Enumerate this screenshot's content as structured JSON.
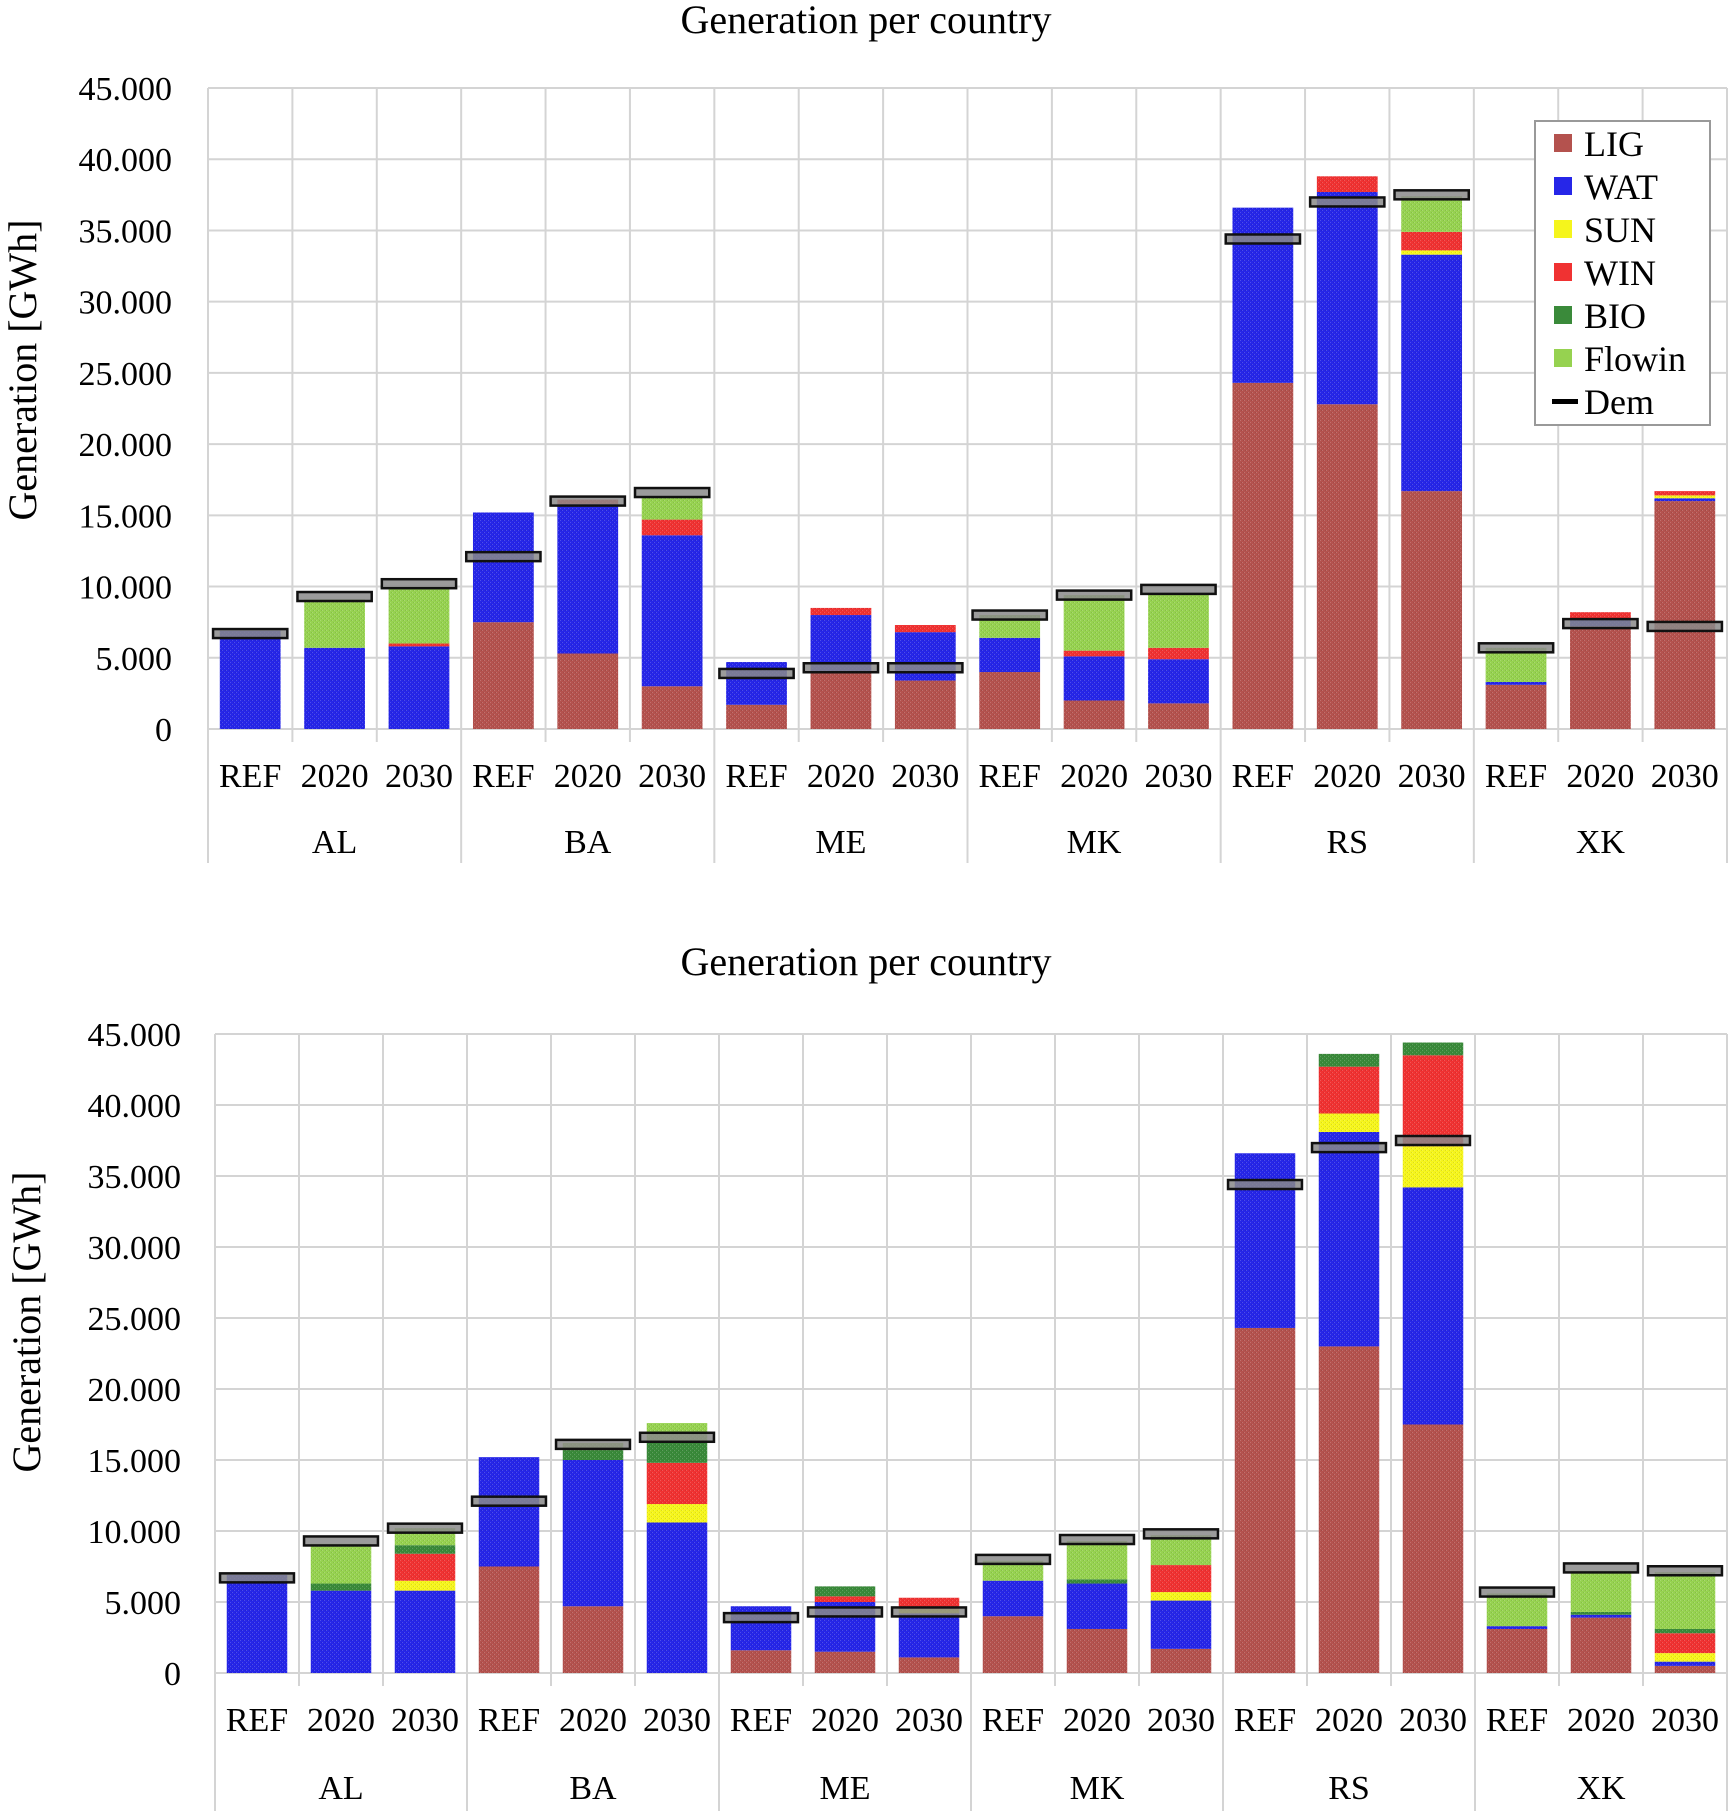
{
  "colors": {
    "LIG": "#b4524e",
    "WAT": "#2626e8",
    "SUN": "#f5f51c",
    "WIN": "#f03232",
    "BIO": "#3a8a3a",
    "Flowin": "#96d250",
    "Dem": "#000000"
  },
  "chart_data": [
    {
      "type": "bar",
      "stacked": true,
      "title": "Generation per country",
      "ylabel": "Generation [GWh]",
      "ylim": [
        0,
        45000
      ],
      "yticks": [
        "0",
        "5.000",
        "10.000",
        "15.000",
        "20.000",
        "25.000",
        "30.000",
        "35.000",
        "40.000",
        "45.000"
      ],
      "grid": true,
      "legend": "top-right",
      "legend_entries": [
        "LIG",
        "WAT",
        "SUN",
        "WIN",
        "BIO",
        "Flowin",
        "Dem"
      ],
      "groups": [
        "AL",
        "BA",
        "ME",
        "MK",
        "RS",
        "XK"
      ],
      "scenarios": [
        "REF",
        "2020",
        "2030"
      ],
      "series": [
        {
          "name": "LIG",
          "values": [
            [
              0,
              0,
              0
            ],
            [
              7500,
              5300,
              3000
            ],
            [
              1700,
              3900,
              3400
            ],
            [
              4000,
              2000,
              1800
            ],
            [
              24300,
              22800,
              16700
            ],
            [
              3100,
              7200,
              16000
            ]
          ]
        },
        {
          "name": "WAT",
          "values": [
            [
              6900,
              5700,
              5800
            ],
            [
              7700,
              10500,
              10600
            ],
            [
              3000,
              4100,
              3400
            ],
            [
              2400,
              3100,
              3100
            ],
            [
              12300,
              14900,
              16600
            ],
            [
              200,
              500,
              200
            ]
          ]
        },
        {
          "name": "SUN",
          "values": [
            [
              0,
              0,
              0
            ],
            [
              0,
              0,
              0
            ],
            [
              0,
              0,
              0
            ],
            [
              0,
              0,
              0
            ],
            [
              0,
              0,
              300
            ],
            [
              0,
              0,
              200
            ]
          ]
        },
        {
          "name": "WIN",
          "values": [
            [
              0,
              0,
              200
            ],
            [
              0,
              300,
              1100
            ],
            [
              0,
              500,
              500
            ],
            [
              0,
              400,
              800
            ],
            [
              0,
              1100,
              1300
            ],
            [
              0,
              500,
              300
            ]
          ]
        },
        {
          "name": "BIO",
          "values": [
            [
              0,
              0,
              0
            ],
            [
              0,
              0,
              0
            ],
            [
              0,
              0,
              0
            ],
            [
              0,
              0,
              0
            ],
            [
              0,
              0,
              0
            ],
            [
              0,
              0,
              0
            ]
          ]
        },
        {
          "name": "Flowin",
          "values": [
            [
              0,
              3400,
              3800
            ],
            [
              0,
              0,
              1600
            ],
            [
              0,
              0,
              0
            ],
            [
              1600,
              3900,
              3800
            ],
            [
              0,
              0,
              2500
            ],
            [
              2400,
              0,
              0
            ]
          ]
        },
        {
          "name": "Dem",
          "values": [
            [
              6700,
              9300,
              10200
            ],
            [
              12100,
              16000,
              16600
            ],
            [
              3900,
              4300,
              4300
            ],
            [
              8000,
              9400,
              9800
            ],
            [
              34400,
              37000,
              37500
            ],
            [
              5700,
              7400,
              7200
            ]
          ]
        }
      ]
    },
    {
      "type": "bar",
      "stacked": true,
      "title": "Generation per country",
      "ylabel": "Generation [GWh]",
      "ylim": [
        0,
        45000
      ],
      "yticks": [
        "0",
        "5.000",
        "10.000",
        "15.000",
        "20.000",
        "25.000",
        "30.000",
        "35.000",
        "40.000",
        "45.000"
      ],
      "grid": true,
      "groups": [
        "AL",
        "BA",
        "ME",
        "MK",
        "RS",
        "XK"
      ],
      "scenarios": [
        "REF",
        "2020",
        "2030"
      ],
      "series": [
        {
          "name": "LIG",
          "values": [
            [
              0,
              0,
              0
            ],
            [
              7500,
              4700,
              0
            ],
            [
              1600,
              1500,
              1100
            ],
            [
              4000,
              3100,
              1700
            ],
            [
              24300,
              23000,
              17500
            ],
            [
              3100,
              3900,
              500
            ]
          ]
        },
        {
          "name": "WAT",
          "values": [
            [
              6900,
              5800,
              5800
            ],
            [
              7700,
              10300,
              10600
            ],
            [
              3100,
              3500,
              3100
            ],
            [
              2500,
              3200,
              3400
            ],
            [
              12300,
              15100,
              16700
            ],
            [
              200,
              200,
              300
            ]
          ]
        },
        {
          "name": "SUN",
          "values": [
            [
              0,
              0,
              700
            ],
            [
              0,
              0,
              1300
            ],
            [
              0,
              0,
              300
            ],
            [
              0,
              0,
              600
            ],
            [
              0,
              1300,
              2900
            ],
            [
              0,
              0,
              600
            ]
          ]
        },
        {
          "name": "WIN",
          "values": [
            [
              0,
              0,
              1900
            ],
            [
              0,
              0,
              2900
            ],
            [
              0,
              400,
              800
            ],
            [
              0,
              0,
              1900
            ],
            [
              0,
              3300,
              6400
            ],
            [
              0,
              0,
              1400
            ]
          ]
        },
        {
          "name": "BIO",
          "values": [
            [
              0,
              500,
              600
            ],
            [
              0,
              700,
              1400
            ],
            [
              0,
              700,
              0
            ],
            [
              0,
              300,
              0
            ],
            [
              0,
              900,
              900
            ],
            [
              0,
              200,
              300
            ]
          ]
        },
        {
          "name": "Flowin",
          "values": [
            [
              0,
              2800,
              1200
            ],
            [
              0,
              500,
              1400
            ],
            [
              0,
              0,
              0
            ],
            [
              1400,
              2700,
              2100
            ],
            [
              0,
              0,
              0
            ],
            [
              2300,
              2900,
              4000
            ]
          ]
        },
        {
          "name": "Dem",
          "values": [
            [
              6700,
              9300,
              10200
            ],
            [
              12100,
              16100,
              16600
            ],
            [
              3900,
              4300,
              4300
            ],
            [
              8000,
              9400,
              9800
            ],
            [
              34400,
              37000,
              37500
            ],
            [
              5700,
              7400,
              7200
            ]
          ]
        }
      ]
    }
  ]
}
